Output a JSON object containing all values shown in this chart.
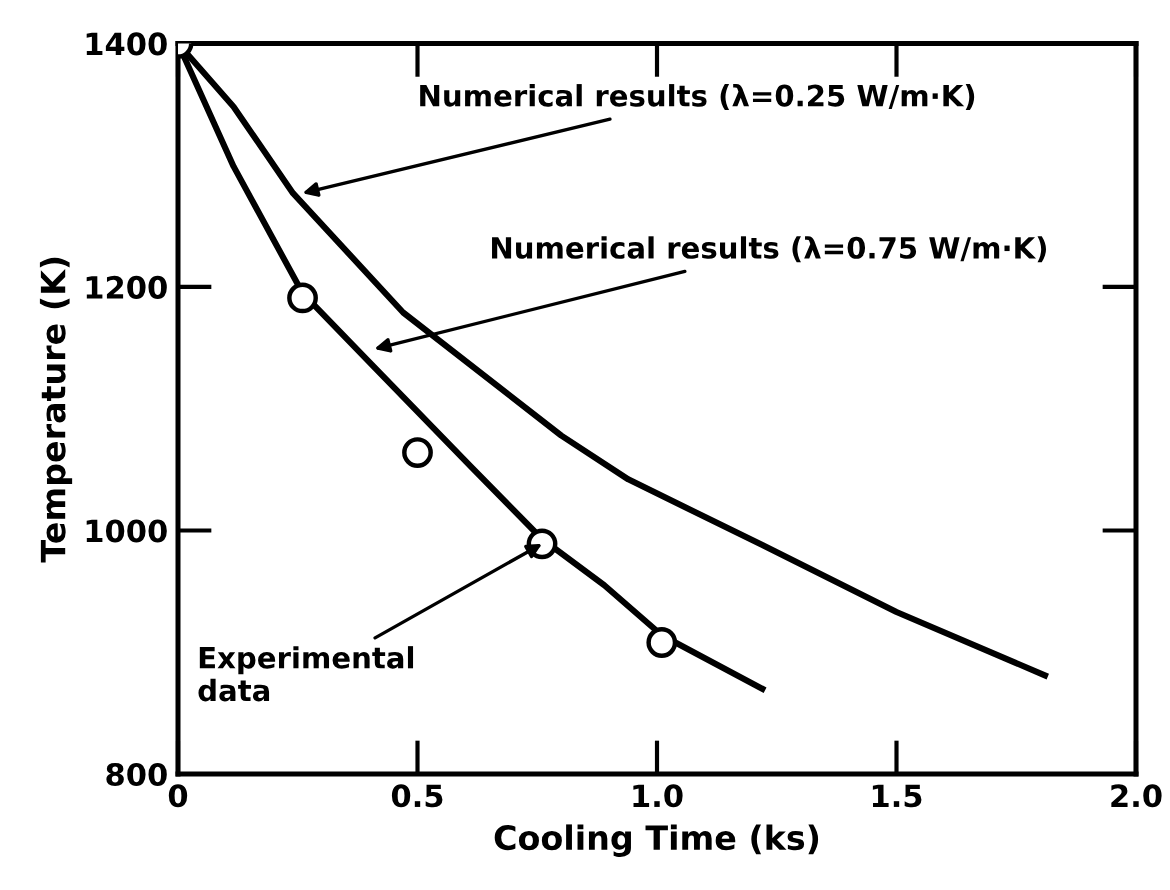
{
  "chart_data": {
    "type": "line",
    "xlabel": "Cooling Time (ks)",
    "ylabel": "Temperature (K)",
    "xlim": [
      0,
      2.0
    ],
    "ylim": [
      800,
      1400
    ],
    "xticks": [
      0,
      0.5,
      {
        "value": 1.0,
        "label": "1.0"
      },
      1.5,
      {
        "value": 2.0,
        "label": "2.0"
      }
    ],
    "yticks": [
      800,
      1000,
      1200,
      1400
    ],
    "grid": false,
    "legend": false,
    "series": [
      {
        "color": "#000000",
        "x": [
          0,
          0.116,
          0.24,
          0.47,
          0.8,
          0.94,
          1.22,
          1.5,
          1.81
        ],
        "values": [
          1400,
          1348,
          1277,
          1179,
          1078,
          1042,
          988,
          933,
          881
        ]
      },
      {
        "color": "#000000",
        "x": [
          0,
          0.116,
          0.26,
          0.4,
          0.61,
          0.76,
          0.89,
          1.01,
          1.22
        ],
        "values": [
          1400,
          1299,
          1195,
          1138,
          1053,
          993,
          955,
          914,
          870
        ]
      },
      {
        "type": "scatter",
        "color": "#000000",
        "marker": "circle",
        "x": [
          0,
          0.26,
          0.5,
          0.76,
          1.01
        ],
        "values": [
          1400,
          1191,
          1064,
          989,
          908
        ]
      }
    ],
    "annotations": [
      {
        "text": "Numerical results (λ=0.25 W/m·K)",
        "x": 0.26,
        "y": 1277
      },
      {
        "text": "Numerical results (λ=0.75 W/m·K)",
        "x": 0.41,
        "y": 1149
      },
      {
        "text": "Experimental\ndata",
        "x": 0.76,
        "y": 989
      }
    ]
  }
}
